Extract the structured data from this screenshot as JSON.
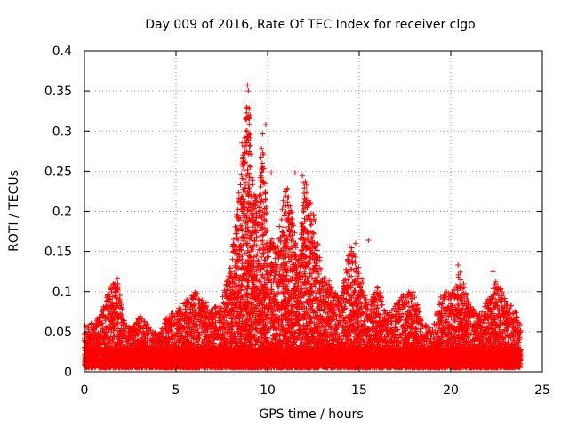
{
  "chart_data": {
    "type": "scatter",
    "title": "Day 009 of 2016, Rate Of TEC Index for receiver clgo",
    "xlabel": "GPS time / hours",
    "ylabel": "ROTI / TECUs",
    "xlim": [
      0,
      25
    ],
    "ylim": [
      0,
      0.4
    ],
    "grid": true,
    "marker": "+",
    "x_ticks": [
      0,
      5,
      10,
      15,
      20,
      25
    ],
    "x_tick_labels": [
      "0",
      "5",
      "10",
      "15",
      "20",
      "25"
    ],
    "y_ticks": [
      0,
      0.05,
      0.1,
      0.15,
      0.2,
      0.25,
      0.3,
      0.35,
      0.4
    ],
    "y_tick_labels": [
      "0",
      "0.05",
      "0.1",
      "0.15",
      "0.2",
      "0.25",
      "0.3",
      "0.35",
      "0.4"
    ],
    "colors": {
      "points": "#ff0000",
      "grid": "#a0a0a0",
      "axes": "#000000"
    },
    "envelope": {
      "description": "approximate upper envelope of ROTI values by hour",
      "x": [
        0,
        0.5,
        1.0,
        1.3,
        1.8,
        2.2,
        2.6,
        3.0,
        3.5,
        4.0,
        4.5,
        5.0,
        5.5,
        6.0,
        6.5,
        7.0,
        7.5,
        8.0,
        8.5,
        8.7,
        8.9,
        9.2,
        9.5,
        9.7,
        10.0,
        10.5,
        11.0,
        11.3,
        11.7,
        12.0,
        12.5,
        13.0,
        13.5,
        14.0,
        14.5,
        15.0,
        15.5,
        16.0,
        16.5,
        17.0,
        17.5,
        18.0,
        18.5,
        19.0,
        19.5,
        20.0,
        20.5,
        21.0,
        21.5,
        22.0,
        22.5,
        23.0,
        23.5,
        23.8
      ],
      "ymax": [
        0.065,
        0.06,
        0.08,
        0.105,
        0.115,
        0.06,
        0.055,
        0.07,
        0.06,
        0.045,
        0.07,
        0.075,
        0.09,
        0.105,
        0.09,
        0.08,
        0.09,
        0.14,
        0.24,
        0.285,
        0.355,
        0.24,
        0.2,
        0.31,
        0.17,
        0.16,
        0.24,
        0.2,
        0.14,
        0.245,
        0.2,
        0.12,
        0.11,
        0.09,
        0.165,
        0.13,
        0.085,
        0.11,
        0.07,
        0.085,
        0.1,
        0.1,
        0.06,
        0.055,
        0.1,
        0.1,
        0.13,
        0.085,
        0.07,
        0.09,
        0.115,
        0.09,
        0.08,
        0.06
      ]
    },
    "notable_points": [
      {
        "x": 8.9,
        "y": 0.357
      },
      {
        "x": 8.95,
        "y": 0.35
      },
      {
        "x": 9.0,
        "y": 0.328
      },
      {
        "x": 9.05,
        "y": 0.32
      },
      {
        "x": 9.9,
        "y": 0.308
      },
      {
        "x": 8.6,
        "y": 0.285
      },
      {
        "x": 8.7,
        "y": 0.26
      },
      {
        "x": 10.2,
        "y": 0.248
      },
      {
        "x": 11.5,
        "y": 0.248
      },
      {
        "x": 11.9,
        "y": 0.244
      },
      {
        "x": 14.8,
        "y": 0.16
      },
      {
        "x": 15.5,
        "y": 0.164
      },
      {
        "x": 20.4,
        "y": 0.133
      },
      {
        "x": 22.3,
        "y": 0.125
      },
      {
        "x": 1.8,
        "y": 0.116
      },
      {
        "x": 1.7,
        "y": 0.1
      }
    ]
  }
}
